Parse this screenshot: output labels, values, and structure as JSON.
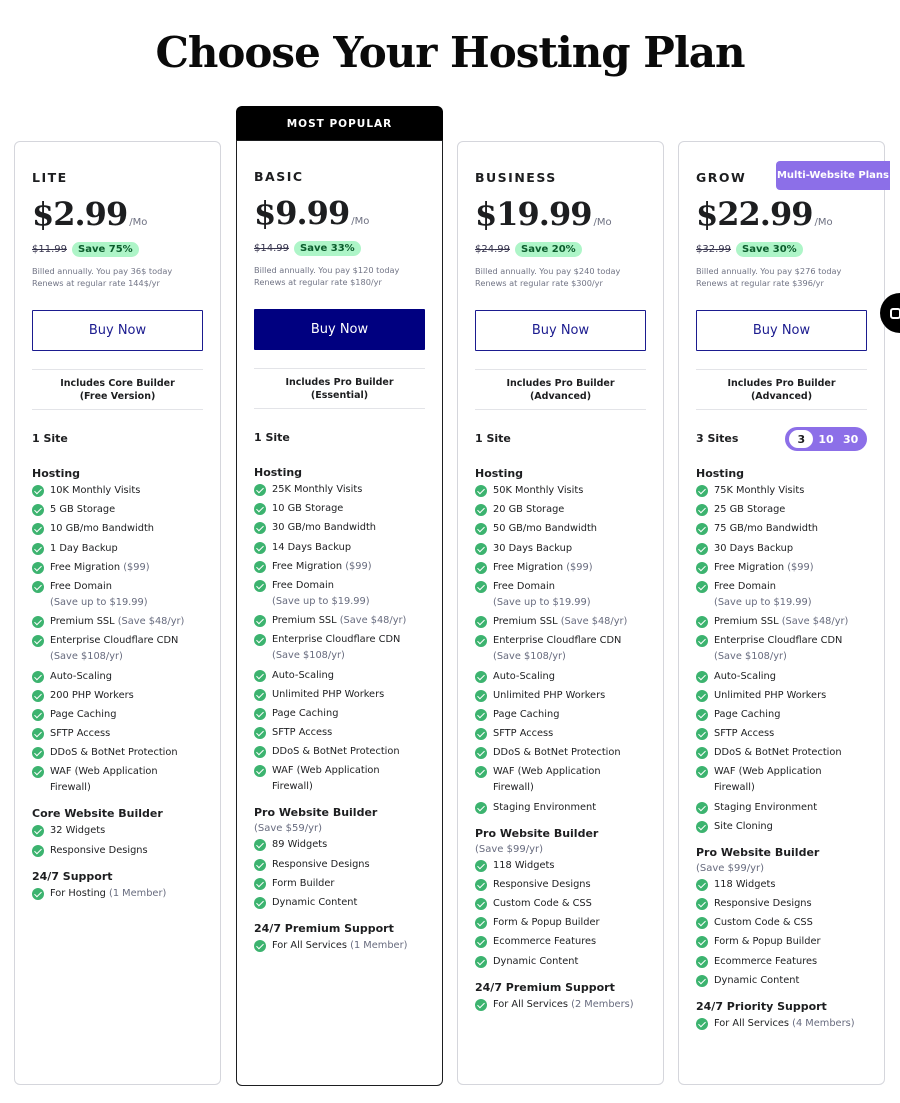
{
  "page": {
    "title": "Choose Your Hosting Plan"
  },
  "ribbon": "MOST POPULAR",
  "multi_badge": "Multi-Website Plans",
  "colors": {
    "primary_button": "#000080",
    "accent_purple": "#8c6fe8",
    "check_green": "#3cb36f",
    "save_badge_bg": "#aef5c8"
  },
  "plans": [
    {
      "name": "LITE",
      "price": "$2.99",
      "per": "/Mo",
      "old_price": "$11.99",
      "save": "Save 75%",
      "billing1": "Billed annually. You pay 36$ today",
      "billing2": "Renews at regular rate 144$/yr",
      "button": "Buy Now",
      "builder1": "Includes Core Builder",
      "builder2": "(Free Version)",
      "sites": "1 Site",
      "sections": [
        {
          "title": "Hosting",
          "items": [
            {
              "text": "10K Monthly Visits"
            },
            {
              "text": "5 GB Storage"
            },
            {
              "text": "10 GB/mo Bandwidth"
            },
            {
              "text": "1 Day Backup"
            },
            {
              "text": "Free Migration",
              "note": "($99)"
            },
            {
              "text": "Free Domain",
              "sub": "(Save up to $19.99)"
            },
            {
              "text": "Premium SSL",
              "note": "(Save $48/yr)"
            },
            {
              "text": "Enterprise Cloudflare CDN",
              "sub": "(Save $108/yr)"
            },
            {
              "text": "Auto-Scaling"
            },
            {
              "text": "200 PHP Workers"
            },
            {
              "text": "Page Caching"
            },
            {
              "text": "SFTP Access"
            },
            {
              "text": "DDoS & BotNet Protection"
            },
            {
              "text": "WAF (Web Application",
              "sub2": "Firewall)"
            }
          ]
        },
        {
          "title": "Core Website Builder",
          "items": [
            {
              "text": "32 Widgets"
            },
            {
              "text": "Responsive Designs"
            }
          ]
        },
        {
          "title": "24/7 Support",
          "items": [
            {
              "text": "For Hosting",
              "note": "(1 Member)"
            }
          ]
        }
      ]
    },
    {
      "name": "BASIC",
      "price": "$9.99",
      "per": "/Mo",
      "old_price": "$14.99",
      "save": "Save 33%",
      "billing1": "Billed annually. You pay $120 today",
      "billing2": "Renews at regular rate $180/yr",
      "button": "Buy Now",
      "builder1": "Includes Pro Builder",
      "builder2": "(Essential)",
      "sites": "1 Site",
      "sections": [
        {
          "title": "Hosting",
          "items": [
            {
              "text": "25K Monthly Visits"
            },
            {
              "text": "10 GB Storage"
            },
            {
              "text": "30 GB/mo Bandwidth"
            },
            {
              "text": "14 Days Backup"
            },
            {
              "text": "Free Migration",
              "note": "($99)"
            },
            {
              "text": "Free Domain",
              "sub": "(Save up to $19.99)"
            },
            {
              "text": "Premium SSL",
              "note": "(Save $48/yr)"
            },
            {
              "text": "Enterprise Cloudflare CDN",
              "sub": "(Save $108/yr)"
            },
            {
              "text": "Auto-Scaling"
            },
            {
              "text": "Unlimited PHP Workers"
            },
            {
              "text": "Page Caching"
            },
            {
              "text": "SFTP Access"
            },
            {
              "text": "DDoS & BotNet Protection"
            },
            {
              "text": "WAF (Web Application",
              "sub2": "Firewall)"
            }
          ]
        },
        {
          "title": "Pro Website Builder",
          "subtitle": "(Save $59/yr)",
          "items": [
            {
              "text": "89 Widgets"
            },
            {
              "text": "Responsive Designs"
            },
            {
              "text": "Form Builder"
            },
            {
              "text": "Dynamic Content"
            }
          ]
        },
        {
          "title": "24/7 Premium Support",
          "items": [
            {
              "text": "For All Services",
              "note": "(1 Member)"
            }
          ]
        }
      ]
    },
    {
      "name": "BUSINESS",
      "price": "$19.99",
      "per": "/Mo",
      "old_price": "$24.99",
      "save": "Save 20%",
      "billing1": "Billed annually. You pay $240 today",
      "billing2": "Renews at regular rate $300/yr",
      "button": "Buy Now",
      "builder1": "Includes Pro Builder",
      "builder2": "(Advanced)",
      "sites": "1 Site",
      "sections": [
        {
          "title": "Hosting",
          "items": [
            {
              "text": "50K Monthly Visits"
            },
            {
              "text": "20 GB Storage"
            },
            {
              "text": "50 GB/mo Bandwidth"
            },
            {
              "text": "30 Days Backup"
            },
            {
              "text": "Free Migration",
              "note": "($99)"
            },
            {
              "text": "Free Domain",
              "sub": "(Save up to $19.99)"
            },
            {
              "text": "Premium SSL",
              "note": "(Save $48/yr)"
            },
            {
              "text": "Enterprise Cloudflare CDN",
              "sub": "(Save $108/yr)"
            },
            {
              "text": "Auto-Scaling"
            },
            {
              "text": "Unlimited PHP Workers"
            },
            {
              "text": "Page Caching"
            },
            {
              "text": "SFTP Access"
            },
            {
              "text": "DDoS & BotNet Protection"
            },
            {
              "text": "WAF (Web Application",
              "sub2": "Firewall)"
            },
            {
              "text": "Staging Environment"
            }
          ]
        },
        {
          "title": "Pro Website Builder",
          "subtitle": "(Save $99/yr)",
          "items": [
            {
              "text": "118 Widgets"
            },
            {
              "text": "Responsive Designs"
            },
            {
              "text": "Custom Code & CSS"
            },
            {
              "text": "Form & Popup Builder"
            },
            {
              "text": "Ecommerce Features"
            },
            {
              "text": "Dynamic Content"
            }
          ]
        },
        {
          "title": "24/7 Premium Support",
          "items": [
            {
              "text": "For All Services",
              "note": "(2 Members)"
            }
          ]
        }
      ]
    },
    {
      "name": "GROW",
      "price": "$22.99",
      "per": "/Mo",
      "old_price": "$32.99",
      "save": "Save 30%",
      "billing1": "Billed annually. You pay $276 today",
      "billing2": "Renews at regular rate $396/yr",
      "button": "Buy Now",
      "builder1": "Includes Pro Builder",
      "builder2": "(Advanced)",
      "sites": "3 Sites",
      "site_options": [
        "3",
        "10",
        "30"
      ],
      "site_selected": "3",
      "sections": [
        {
          "title": "Hosting",
          "items": [
            {
              "text": "75K Monthly Visits"
            },
            {
              "text": "25 GB Storage"
            },
            {
              "text": "75 GB/mo Bandwidth"
            },
            {
              "text": "30 Days Backup"
            },
            {
              "text": "Free Migration",
              "note": "($99)"
            },
            {
              "text": "Free Domain",
              "sub": "(Save up to $19.99)"
            },
            {
              "text": "Premium SSL",
              "note": "(Save $48/yr)"
            },
            {
              "text": "Enterprise Cloudflare CDN",
              "sub": "(Save $108/yr)"
            },
            {
              "text": "Auto-Scaling"
            },
            {
              "text": "Unlimited PHP Workers"
            },
            {
              "text": "Page Caching"
            },
            {
              "text": "SFTP Access"
            },
            {
              "text": "DDoS & BotNet Protection"
            },
            {
              "text": "WAF (Web Application",
              "sub2": "Firewall)"
            },
            {
              "text": "Staging Environment"
            },
            {
              "text": "Site Cloning"
            }
          ]
        },
        {
          "title": "Pro Website Builder",
          "subtitle": "(Save $99/yr)",
          "items": [
            {
              "text": "118 Widgets"
            },
            {
              "text": "Responsive Designs"
            },
            {
              "text": "Custom Code & CSS"
            },
            {
              "text": "Form & Popup Builder"
            },
            {
              "text": "Ecommerce Features"
            },
            {
              "text": "Dynamic Content"
            }
          ]
        },
        {
          "title": "24/7 Priority Support",
          "items": [
            {
              "text": "For All Services",
              "note": "(4 Members)"
            }
          ]
        }
      ]
    }
  ]
}
